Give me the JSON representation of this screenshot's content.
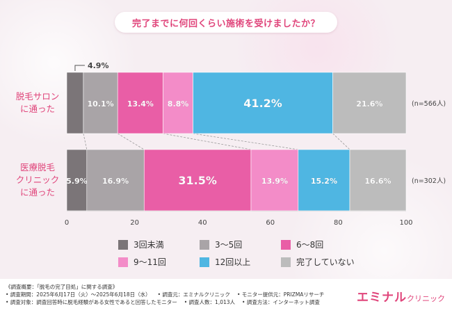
{
  "title": "完了までに何回くらい施術を受けましたか？",
  "chart_data": {
    "type": "bar",
    "orientation": "horizontal",
    "stacked": true,
    "xlim": [
      0,
      100
    ],
    "xticks": [
      0,
      20,
      40,
      60,
      80,
      100
    ],
    "rows": [
      {
        "label": [
          "脱毛サロン",
          "に通った"
        ],
        "n": "(n=566人)",
        "values": [
          4.9,
          10.1,
          13.4,
          8.8,
          41.2,
          21.6
        ],
        "labels": [
          "4.9%",
          "10.1%",
          "13.4%",
          "8.8%",
          "41.2%",
          "21.6%"
        ]
      },
      {
        "label": [
          "医療脱毛",
          "クリニック",
          "に通った"
        ],
        "n": "(n=302人)",
        "values": [
          5.9,
          16.9,
          31.5,
          13.9,
          15.2,
          16.6
        ],
        "labels": [
          "5.9%",
          "16.9%",
          "31.5%",
          "13.9%",
          "15.2%",
          "16.6%"
        ]
      }
    ],
    "series": [
      {
        "name": "3回未満",
        "color": "#7b7578"
      },
      {
        "name": "3〜5回",
        "color": "#a9a4a7"
      },
      {
        "name": "6〜8回",
        "color": "#e95ea6"
      },
      {
        "name": "9〜11回",
        "color": "#f38cc8"
      },
      {
        "name": "12回以上",
        "color": "#4fb6e2"
      },
      {
        "name": "完了していない",
        "color": "#bcbcbc"
      }
    ]
  },
  "footer": {
    "notes": [
      [
        "《調査概要：「脱毛の完了目処」に関する調査》"
      ],
      [
        "• 調査期間：2025年6月17日（火）〜2025年6月18日（水）",
        "• 調査元：エミナルクリニック",
        "• モニター提供元：PRIZMAリサーチ"
      ],
      [
        "• 調査対象：調査回答時に脱毛経験がある女性であると回答したモニター",
        "• 調査人数：1,013人",
        "• 調査方法：インターネット調査"
      ]
    ],
    "brand_main": "エミナル",
    "brand_sub": "クリニック"
  }
}
